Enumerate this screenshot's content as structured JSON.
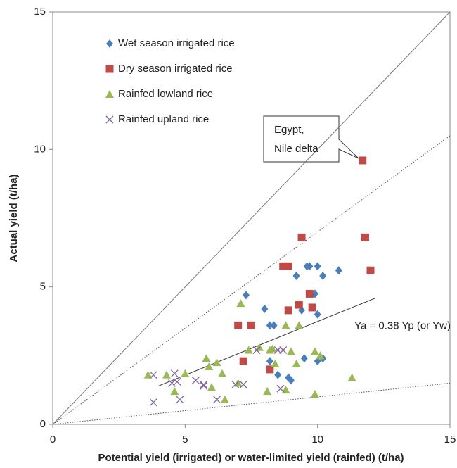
{
  "chart_data": {
    "type": "scatter",
    "xlabel": "Potential yield (irrigated) or water-limited yield (rainfed) (t/ha)",
    "ylabel": "Actual yield (t/ha)",
    "xlim": [
      0,
      15
    ],
    "ylim": [
      0,
      15
    ],
    "xticks": [
      0,
      5,
      10,
      15
    ],
    "yticks": [
      0,
      5,
      10,
      15
    ],
    "grid": false,
    "legend": "upper left",
    "series": [
      {
        "name": "Wet season irrigated rice",
        "color": "#4a7ebb",
        "marker": "diamond",
        "x": [
          7.3,
          8.0,
          8.2,
          8.35,
          9.2,
          9.6,
          9.7,
          10.0,
          10.2,
          10.8,
          9.4,
          9.9,
          10.0,
          8.2,
          8.5,
          8.9,
          9.0,
          9.5,
          10.0,
          10.2
        ],
        "y": [
          4.7,
          4.2,
          3.6,
          3.6,
          5.4,
          5.75,
          5.75,
          5.75,
          5.4,
          5.6,
          4.15,
          4.75,
          4.0,
          2.3,
          1.8,
          1.7,
          1.6,
          2.4,
          2.3,
          2.4
        ]
      },
      {
        "name": "Dry season irrigated rice",
        "color": "#be4b48",
        "marker": "square",
        "x": [
          11.7,
          9.4,
          11.8,
          8.7,
          8.9,
          12.0,
          9.7,
          9.3,
          9.8,
          8.9,
          7.0,
          7.5,
          7.2,
          8.2
        ],
        "y": [
          9.6,
          6.8,
          6.8,
          5.75,
          5.75,
          5.6,
          4.75,
          4.35,
          4.25,
          4.15,
          3.6,
          3.6,
          2.3,
          2.0
        ]
      },
      {
        "name": "Rainfed lowland rice",
        "color": "#98b954",
        "marker": "triangle",
        "x": [
          7.1,
          3.6,
          4.3,
          4.6,
          5.0,
          5.8,
          5.9,
          6.2,
          6.0,
          6.4,
          6.5,
          7.0,
          7.4,
          7.8,
          8.1,
          8.2,
          8.3,
          8.4,
          8.8,
          8.8,
          9.0,
          9.2,
          9.3,
          9.9,
          10.1,
          9.9,
          11.3
        ],
        "y": [
          4.4,
          1.8,
          1.8,
          1.2,
          1.85,
          2.4,
          2.1,
          2.25,
          1.35,
          1.85,
          0.9,
          1.5,
          2.7,
          2.8,
          1.2,
          2.7,
          2.75,
          2.2,
          3.6,
          1.25,
          2.65,
          2.2,
          3.6,
          2.65,
          2.5,
          1.1,
          1.7
        ]
      },
      {
        "name": "Rainfed upland rice",
        "color": "#7e649e",
        "marker": "x",
        "x": [
          3.8,
          3.8,
          4.5,
          4.6,
          4.7,
          4.8,
          5.4,
          5.7,
          5.7,
          6.2,
          6.9,
          7.2,
          7.7,
          8.5,
          8.6,
          8.7
        ],
        "y": [
          0.8,
          1.8,
          1.5,
          1.85,
          1.55,
          0.9,
          1.6,
          1.45,
          1.4,
          0.9,
          1.45,
          1.45,
          2.7,
          2.7,
          1.3,
          2.7
        ]
      }
    ],
    "lines": [
      {
        "x": [
          0,
          15
        ],
        "y": [
          0,
          15
        ],
        "style": "solid",
        "color": "#777777"
      },
      {
        "x": [
          0,
          15
        ],
        "y": [
          0,
          10.5
        ],
        "style": "dotted",
        "color": "#555555"
      },
      {
        "x": [
          0,
          15
        ],
        "y": [
          0,
          1.5
        ],
        "style": "dotted",
        "color": "#555555"
      },
      {
        "x": [
          4,
          12.2
        ],
        "y": [
          1.4,
          4.6
        ],
        "style": "solid",
        "color": "#333333",
        "label": "Ya = 0.38 Yp (or Yw)"
      }
    ],
    "annotation": {
      "lines": [
        "Egypt,",
        "Nile delta"
      ]
    }
  }
}
